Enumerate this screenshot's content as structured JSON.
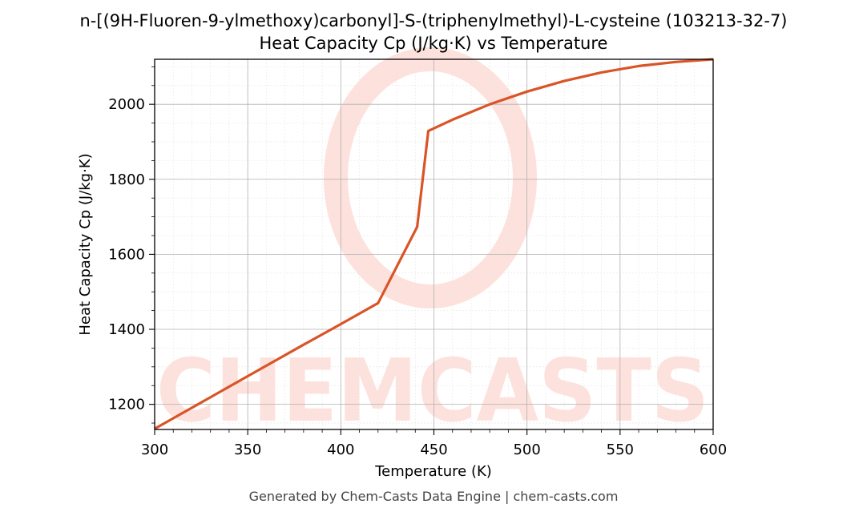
{
  "chart_data": {
    "type": "line",
    "title": "n-[(9H-Fluoren-9-ylmethoxy)carbonyl]-S-(triphenylmethyl)-L-cysteine (103213-32-7)",
    "subtitle": "Heat Capacity Cp (J/kg·K) vs Temperature",
    "xlabel": "Temperature (K)",
    "ylabel": "Heat Capacity Cp (J/kg·K)",
    "xlim": [
      300,
      600
    ],
    "ylim": [
      1133,
      2120
    ],
    "xticks": [
      300,
      350,
      400,
      450,
      500,
      550,
      600
    ],
    "yticks": [
      1200,
      1400,
      1600,
      1800,
      2000
    ],
    "grid": true,
    "line_color": "#d95427",
    "series": [
      {
        "x": [
          300,
          320,
          340,
          360,
          380,
          400,
          420,
          441,
          447,
          460,
          480,
          500,
          520,
          540,
          560,
          580,
          600
        ],
        "values": [
          1135,
          1191,
          1247,
          1303,
          1359,
          1414,
          1470,
          1673,
          1929,
          1959,
          2000,
          2034,
          2062,
          2085,
          2102,
          2113,
          2120
        ]
      }
    ]
  },
  "watermark": {
    "text": "CHEMCASTS",
    "color": "#fde1dc"
  },
  "footer": "Generated by Chem-Casts Data Engine | chem-casts.com"
}
